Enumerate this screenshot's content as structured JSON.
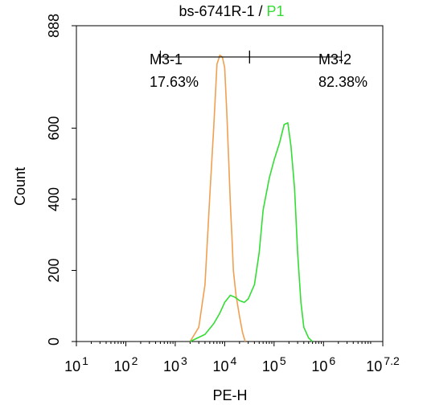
{
  "chart_data": {
    "type": "line",
    "title_prefix": "bs-6741R-1 / ",
    "title_gate": "P1",
    "xlabel": "PE-H",
    "ylabel": "Count",
    "x_scale": "log",
    "xlim": [
      10,
      15848932
    ],
    "ylim": [
      0,
      888
    ],
    "x_ticks": [
      {
        "value": 10,
        "base": "10",
        "exp": "1"
      },
      {
        "value": 100,
        "base": "10",
        "exp": "2"
      },
      {
        "value": 1000,
        "base": "10",
        "exp": "3"
      },
      {
        "value": 10000,
        "base": "10",
        "exp": "4"
      },
      {
        "value": 100000,
        "base": "10",
        "exp": "5"
      },
      {
        "value": 1000000,
        "base": "10",
        "exp": "6"
      },
      {
        "value": 15848932,
        "base": "10",
        "exp": "7.2"
      }
    ],
    "y_ticks": [
      {
        "value": 0,
        "label": "0"
      },
      {
        "value": 200,
        "label": "200"
      },
      {
        "value": 400,
        "label": "400"
      },
      {
        "value": 600,
        "label": "600"
      },
      {
        "value": 888,
        "label": "888"
      }
    ],
    "colors": {
      "control": "#f0a050",
      "sample": "#33dd33",
      "axis": "#000000"
    },
    "series": [
      {
        "color": "#f0a050",
        "x": [
          2000,
          3000,
          4000,
          5000,
          6000,
          7000,
          8000,
          9000,
          10000,
          11000,
          12000,
          13000,
          14000,
          15000,
          17000,
          20000,
          23000,
          26000
        ],
        "y": [
          0,
          40,
          160,
          410,
          600,
          780,
          805,
          800,
          770,
          650,
          520,
          390,
          300,
          200,
          130,
          70,
          25,
          0
        ]
      },
      {
        "color": "#33dd33",
        "x": [
          2000,
          4000,
          6000,
          8000,
          10000,
          13000,
          16000,
          20000,
          25000,
          30000,
          40000,
          50000,
          60000,
          80000,
          100000,
          130000,
          160000,
          190000,
          220000,
          260000,
          300000,
          350000,
          400000,
          500000,
          600000
        ],
        "y": [
          0,
          20,
          50,
          80,
          110,
          130,
          125,
          115,
          110,
          120,
          160,
          250,
          370,
          460,
          510,
          560,
          610,
          615,
          550,
          430,
          250,
          110,
          40,
          10,
          0
        ]
      }
    ],
    "markers": [
      {
        "name": "M3-1",
        "percent": "17.63%",
        "x_start": 500,
        "x_end": 32000,
        "y": 800
      },
      {
        "name": "M3-2",
        "percent": "82.38%",
        "x_start": 32000,
        "x_end": 2300000,
        "y": 800
      }
    ]
  }
}
